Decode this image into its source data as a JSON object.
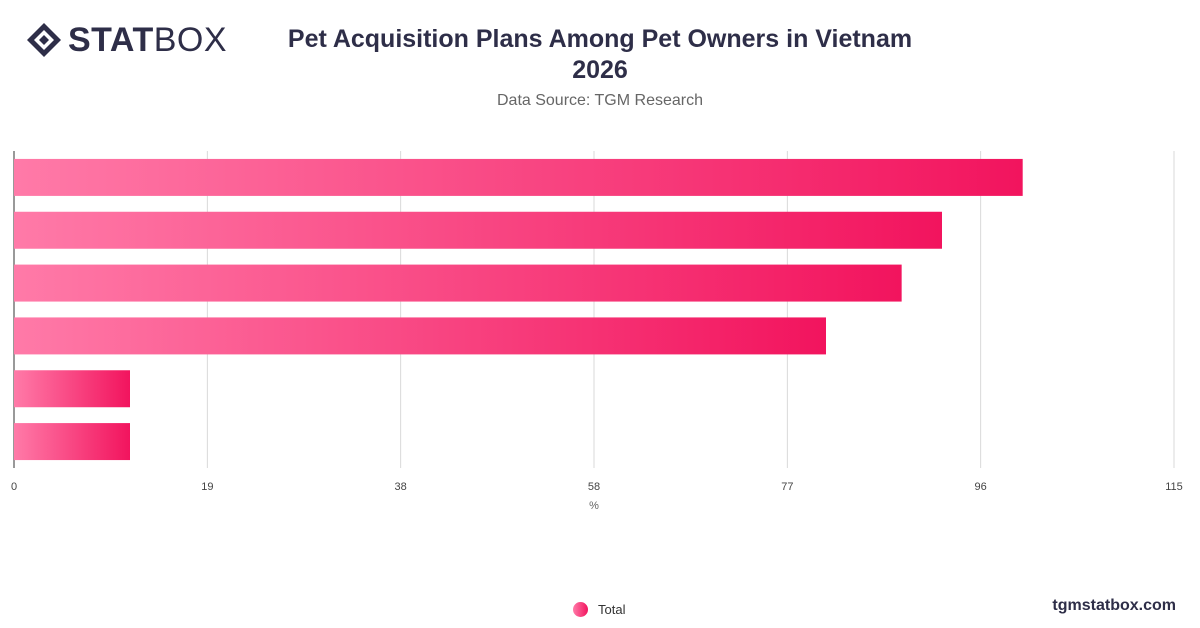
{
  "header": {
    "logo_bold": "STAT",
    "logo_light": "BOX",
    "title_line1": "Pet Acquisition Plans Among Pet Owners in Vietnam",
    "title_line2": "2026",
    "subtitle": "Data Source: TGM Research"
  },
  "legend": {
    "label": "Total"
  },
  "footer": {
    "site": "tgmstatbox.com"
  },
  "colors": {
    "bar_start": "#ff7aa8",
    "bar_end": "#f2145e",
    "text": "#2e2e48",
    "grid": "#d9d9d9"
  },
  "chart_data": {
    "type": "bar",
    "orientation": "horizontal",
    "categories": [
      "",
      "",
      "",
      "",
      "",
      ""
    ],
    "series": [
      {
        "name": "Total",
        "values": [
          100,
          92,
          88,
          80.5,
          11.5,
          11.5
        ]
      }
    ],
    "xlabel": "%",
    "xlim": [
      0,
      115
    ],
    "xticks": [
      "0",
      "19",
      "38",
      "58",
      "77",
      "96",
      "115"
    ],
    "xtick_values": [
      0,
      19.17,
      38.33,
      57.5,
      76.67,
      95.83,
      115
    ],
    "grid": true,
    "legend_position": "bottom"
  }
}
